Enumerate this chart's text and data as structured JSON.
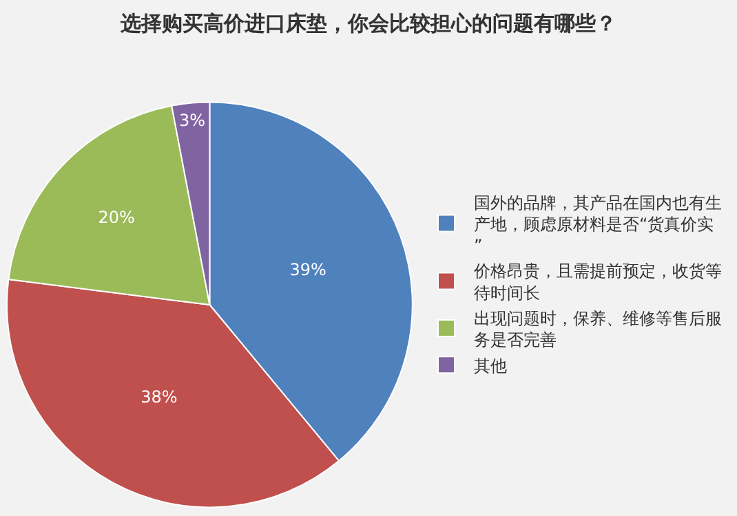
{
  "chart_data": {
    "type": "pie",
    "title": "选择购买高价进口床垫，你会比较担心的问题有哪些？",
    "categories": [
      "国外的品牌，其产品在国内也有生产地，顾虑原材料是否“货真价实”",
      "价格昂贵，且需提前预定，收货等待时间长",
      "出现问题时，保养、维修等售后服务是否完善",
      "其他"
    ],
    "values": [
      39,
      38,
      20,
      3
    ],
    "value_labels": [
      "39%",
      "38%",
      "20%",
      "3%"
    ],
    "colors": [
      "#4f81bd",
      "#c0504d",
      "#9bbb59",
      "#8064a2"
    ],
    "legend": "right"
  }
}
